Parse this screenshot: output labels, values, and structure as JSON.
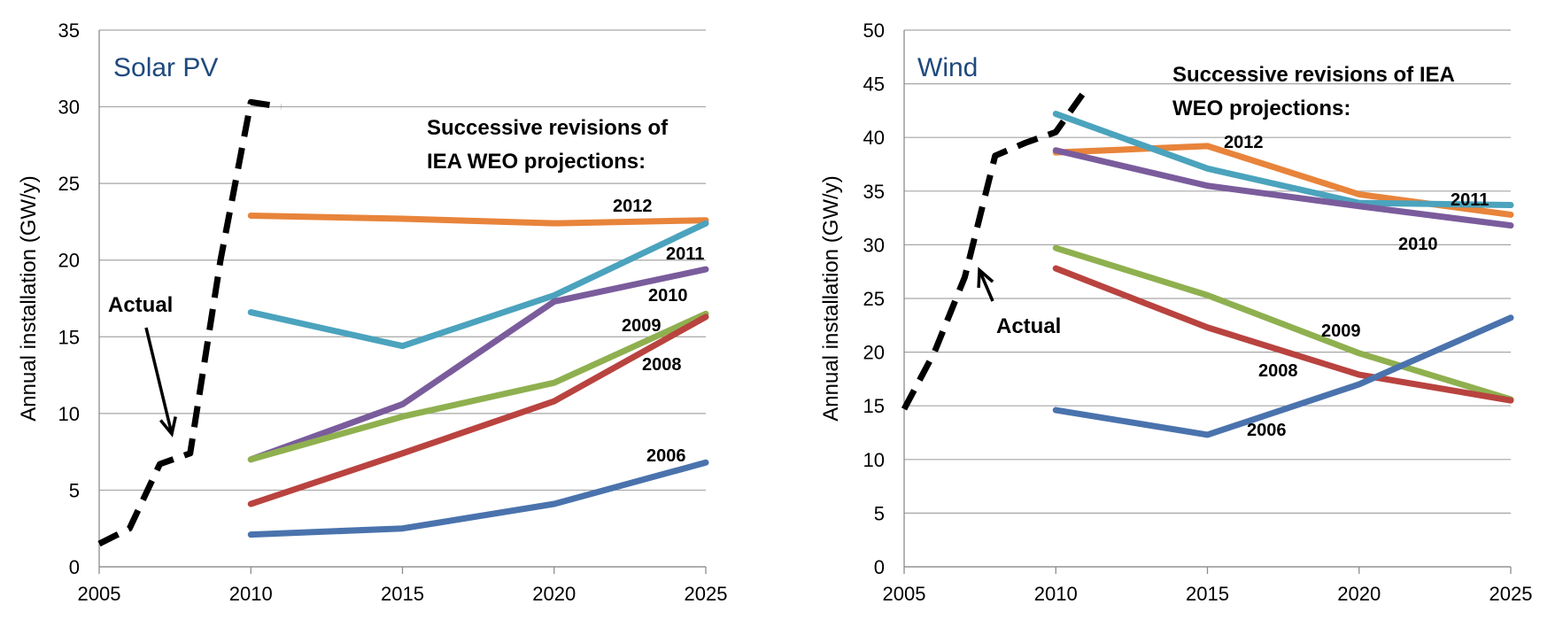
{
  "chart_data": [
    {
      "type": "line",
      "title": "Solar PV",
      "subtitle_lines": [
        "Successive revisions of",
        "IEA WEO projections:"
      ],
      "xlabel": "",
      "ylabel": "Annual installation (GW/y)",
      "xlim": [
        2005,
        2025
      ],
      "ylim": [
        0,
        35
      ],
      "xticks": [
        "2005",
        "2010",
        "2015",
        "2020",
        "2025"
      ],
      "yticks": [
        "0",
        "5",
        "10",
        "15",
        "20",
        "25",
        "30",
        "35"
      ],
      "grid": true,
      "annotation": "Actual",
      "colors": {
        "title": "#1f497d",
        "actual": "#000000"
      },
      "actual": {
        "x": [
          2005,
          2006,
          2007,
          2008,
          2009,
          2010,
          2011
        ],
        "y": [
          1.5,
          2.5,
          6.7,
          7.4,
          20,
          30.3,
          30
        ]
      },
      "series": [
        {
          "name": "2012",
          "color": "#e8843b",
          "x": [
            2010,
            2015,
            2020,
            2025
          ],
          "y": [
            22.9,
            22.7,
            22.4,
            22.6
          ]
        },
        {
          "name": "2011",
          "color": "#4ba3bd",
          "x": [
            2010,
            2015,
            2020,
            2025
          ],
          "y": [
            16.6,
            14.4,
            17.7,
            22.4
          ]
        },
        {
          "name": "2010",
          "color": "#7a5c9c",
          "x": [
            2010,
            2015,
            2020,
            2025
          ],
          "y": [
            7.0,
            10.6,
            17.3,
            19.4
          ]
        },
        {
          "name": "2009",
          "color": "#8fb04f",
          "x": [
            2010,
            2015,
            2020,
            2025
          ],
          "y": [
            7.0,
            9.8,
            12.0,
            16.5
          ]
        },
        {
          "name": "2008",
          "color": "#b9433f",
          "x": [
            2010,
            2015,
            2020,
            2025
          ],
          "y": [
            4.1,
            7.4,
            10.8,
            16.3
          ]
        },
        {
          "name": "2006",
          "color": "#4a73ad",
          "x": [
            2010,
            2015,
            2020,
            2025
          ],
          "y": [
            2.1,
            2.5,
            4.1,
            6.8
          ]
        }
      ]
    },
    {
      "type": "line",
      "title": "Wind",
      "subtitle_lines": [
        "Successive revisions of IEA",
        "WEO projections:"
      ],
      "xlabel": "",
      "ylabel": "Annual installation (GW/y)",
      "xlim": [
        2005,
        2025
      ],
      "ylim": [
        0,
        50
      ],
      "xticks": [
        "2005",
        "2010",
        "2015",
        "2020",
        "2025"
      ],
      "yticks": [
        "0",
        "5",
        "10",
        "15",
        "20",
        "25",
        "30",
        "35",
        "40",
        "45",
        "50"
      ],
      "grid": true,
      "annotation": "Actual",
      "colors": {
        "title": "#1f497d",
        "actual": "#000000"
      },
      "actual": {
        "x": [
          2005,
          2006,
          2007,
          2008,
          2009,
          2010,
          2011
        ],
        "y": [
          14.7,
          20,
          27,
          38.3,
          39.5,
          40.5,
          44.5
        ]
      },
      "series": [
        {
          "name": "2012",
          "color": "#e8843b",
          "x": [
            2010,
            2015,
            2020,
            2025
          ],
          "y": [
            38.6,
            39.2,
            34.7,
            32.8
          ]
        },
        {
          "name": "2011",
          "color": "#4ba3bd",
          "x": [
            2010,
            2015,
            2020,
            2025
          ],
          "y": [
            42.2,
            37.1,
            33.9,
            33.7
          ]
        },
        {
          "name": "2010",
          "color": "#7a5c9c",
          "x": [
            2010,
            2015,
            2020,
            2025
          ],
          "y": [
            38.8,
            35.5,
            33.6,
            31.8
          ]
        },
        {
          "name": "2009",
          "color": "#8fb04f",
          "x": [
            2010,
            2015,
            2020,
            2025
          ],
          "y": [
            29.7,
            25.3,
            19.9,
            15.6
          ]
        },
        {
          "name": "2008",
          "color": "#b9433f",
          "x": [
            2010,
            2015,
            2020,
            2025
          ],
          "y": [
            27.8,
            22.3,
            17.9,
            15.5
          ]
        },
        {
          "name": "2006",
          "color": "#4a73ad",
          "x": [
            2010,
            2015,
            2020,
            2025
          ],
          "y": [
            14.6,
            12.3,
            17.0,
            23.2
          ]
        }
      ]
    }
  ]
}
